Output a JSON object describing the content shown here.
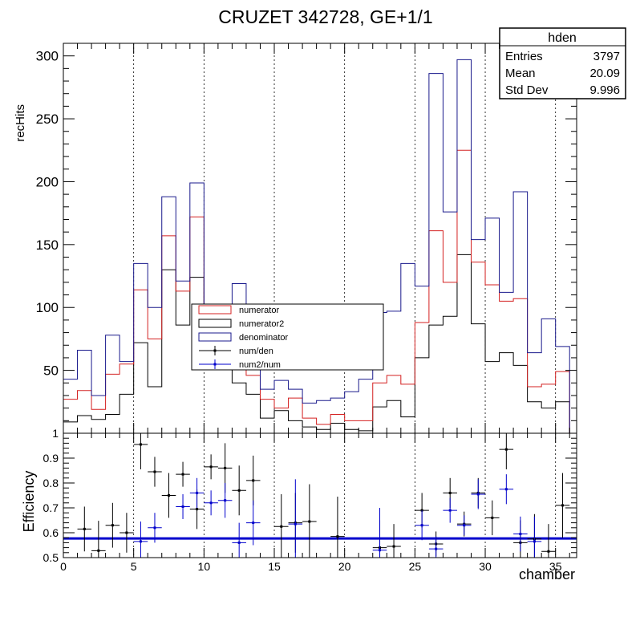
{
  "title": "CRUZET 342728, GE+1/1",
  "stats_box": {
    "name": "hden",
    "rows": [
      {
        "label": "Entries",
        "value": "3797"
      },
      {
        "label": "Mean",
        "value": "20.09"
      },
      {
        "label": "Std Dev",
        "value": "9.996"
      }
    ]
  },
  "colors": {
    "numerator": "#d42020",
    "numerator2": "#000000",
    "denominator": "#1a1a8c",
    "ratio_den": "#000000",
    "ratio_num2": "#0000cc"
  },
  "chart_data": [
    {
      "type": "histogram",
      "ylabel": "recHits",
      "xlim": [
        0,
        36.5
      ],
      "ylim": [
        0,
        310
      ],
      "x_ticks": [
        0,
        5,
        10,
        15,
        20,
        25,
        30,
        35
      ],
      "y_ticks": [
        50,
        100,
        150,
        200,
        250,
        300
      ],
      "grid_x": true,
      "legend_position": "center",
      "series": [
        {
          "name": "numerator",
          "key": "numerator",
          "values": [
            27,
            34,
            19,
            47,
            55,
            114,
            75,
            157,
            113,
            172,
            70,
            70,
            56,
            46,
            27,
            20,
            28,
            12,
            7,
            15,
            10,
            10,
            40,
            46,
            39,
            88,
            161,
            120,
            225,
            136,
            118,
            105,
            107,
            37,
            39,
            49
          ]
        },
        {
          "name": "numerator2",
          "key": "numerator2",
          "values": [
            9,
            14,
            11,
            15,
            31,
            72,
            37,
            130,
            86,
            124,
            60,
            65,
            40,
            31,
            12,
            18,
            10,
            5,
            3,
            8,
            3,
            2,
            21,
            26,
            13,
            60,
            86,
            93,
            142,
            87,
            57,
            64,
            54,
            25,
            20,
            25
          ]
        },
        {
          "name": "denominator",
          "key": "denominator",
          "values": [
            43,
            66,
            30,
            78,
            57,
            135,
            100,
            188,
            121,
            199,
            65,
            73,
            119,
            51,
            35,
            42,
            35,
            24,
            26,
            28,
            33,
            43,
            96,
            97,
            135,
            117,
            286,
            176,
            297,
            154,
            171,
            112,
            192,
            64,
            91,
            69
          ]
        }
      ]
    },
    {
      "type": "scatter",
      "ylabel": "Efficiency",
      "xlabel": "chamber",
      "xlim": [
        0,
        36.5
      ],
      "ylim": [
        0.5,
        1
      ],
      "x_ticks": [
        0,
        5,
        10,
        15,
        20,
        25,
        30,
        35
      ],
      "y_ticks": [
        0.5,
        0.6,
        0.7,
        0.8,
        0.9,
        1
      ],
      "fit_line_value": 0.577,
      "series": [
        {
          "name": "num/den",
          "key": "ratio_den",
          "x": [
            1.5,
            2.5,
            3.5,
            4.5,
            5.5,
            6.5,
            7.5,
            8.5,
            9.5,
            10.5,
            11.5,
            12.5,
            13.5,
            15.5,
            16.5,
            17.5,
            19.5,
            22.5,
            23.5,
            25.5,
            26.5,
            27.5,
            28.5,
            29.5,
            30.5,
            31.5,
            32.5,
            33.5,
            34.5,
            35.5
          ],
          "y": [
            0.615,
            0.528,
            0.63,
            0.6,
            0.955,
            0.845,
            0.75,
            0.835,
            0.695,
            0.865,
            0.86,
            0.77,
            0.81,
            0.625,
            0.64,
            0.645,
            0.585,
            0.54,
            0.545,
            0.69,
            0.555,
            0.76,
            0.635,
            0.76,
            0.66,
            0.935,
            0.56,
            0.575,
            0.525,
            0.71
          ],
          "err": [
            0.09,
            0.12,
            0.09,
            0.08,
            0.1,
            0.06,
            0.09,
            0.05,
            0.08,
            0.05,
            0.1,
            0.1,
            0.1,
            0.13,
            0.12,
            0.15,
            0.16,
            0.11,
            0.09,
            0.07,
            0.05,
            0.06,
            0.05,
            0.06,
            0.07,
            0.08,
            0.09,
            0.1,
            0.11,
            0.13
          ]
        },
        {
          "name": "num2/num",
          "key": "ratio_num2",
          "x": [
            5.5,
            6.5,
            8.5,
            9.5,
            10.5,
            11.5,
            12.5,
            13.5,
            16.5,
            22.5,
            25.5,
            26.5,
            27.5,
            28.5,
            29.5,
            31.5,
            32.5,
            33.5
          ],
          "y": [
            0.565,
            0.62,
            0.705,
            0.76,
            0.72,
            0.73,
            0.56,
            0.64,
            0.635,
            0.53,
            0.63,
            0.535,
            0.69,
            0.63,
            0.755,
            0.775,
            0.595,
            0.565
          ],
          "err": [
            0.08,
            0.06,
            0.05,
            0.06,
            0.05,
            0.07,
            0.08,
            0.09,
            0.18,
            0.17,
            0.06,
            0.05,
            0.05,
            0.04,
            0.06,
            0.06,
            0.07,
            0.1
          ]
        }
      ]
    }
  ]
}
